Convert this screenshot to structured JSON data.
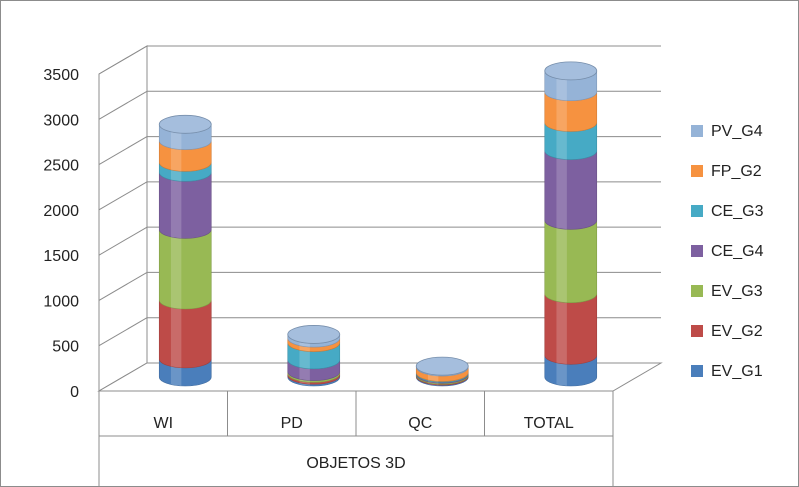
{
  "chart_data": {
    "type": "bar",
    "stacked": true,
    "style": "3d-cylinder",
    "categories": [
      "WI",
      "PD",
      "QC",
      "TOTAL"
    ],
    "xlabel": "OBJETOS 3D",
    "ylabel": "",
    "title": "",
    "ylim": [
      0,
      3500
    ],
    "yticks": [
      0,
      500,
      1000,
      1500,
      2000,
      2500,
      3000,
      3500
    ],
    "grid": true,
    "legend_position": "right",
    "series": [
      {
        "name": "EV_G1",
        "color": "#4a7ebb",
        "values": [
          200,
          20,
          10,
          240
        ]
      },
      {
        "name": "EV_G2",
        "color": "#be4b48",
        "values": [
          650,
          20,
          10,
          680
        ]
      },
      {
        "name": "EV_G3",
        "color": "#98b954",
        "values": [
          780,
          20,
          10,
          810
        ]
      },
      {
        "name": "CE_G4",
        "color": "#7d60a0",
        "values": [
          630,
          130,
          10,
          770
        ]
      },
      {
        "name": "CE_G3",
        "color": "#46aac5",
        "values": [
          110,
          190,
          10,
          310
        ]
      },
      {
        "name": "FP_G2",
        "color": "#f69240",
        "values": [
          240,
          50,
          60,
          340
        ]
      },
      {
        "name": "PV_G4",
        "color": "#95b3d7",
        "values": [
          180,
          40,
          10,
          230
        ]
      }
    ]
  }
}
